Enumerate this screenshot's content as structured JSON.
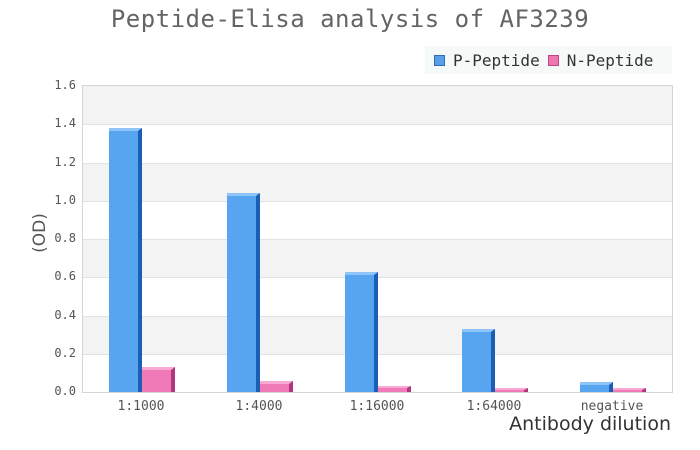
{
  "title": "Peptide-Elisa analysis of AF3239",
  "legend": {
    "items": [
      {
        "label": "P-Peptide",
        "swatch_color": "#57a0e8",
        "swatch_border": "#2f6db8"
      },
      {
        "label": "N-Peptide",
        "swatch_color": "#ee77ae",
        "swatch_border": "#c04488"
      }
    ]
  },
  "axes": {
    "y_title": "(OD)",
    "x_title": "Antibody dilution",
    "y_ticks": [
      "0.0",
      "0.2",
      "0.4",
      "0.6",
      "0.8",
      "1.0",
      "1.2",
      "1.4",
      "1.6"
    ]
  },
  "chart_data": {
    "type": "bar",
    "title": "Peptide-Elisa analysis of AF3239",
    "categories": [
      "1:1000",
      "1:4000",
      "1:16000",
      "1:64000",
      "negative"
    ],
    "series": [
      {
        "name": "P-Peptide",
        "values": [
          1.38,
          1.04,
          0.63,
          0.33,
          0.05
        ],
        "color": "#57a4f0",
        "color_dark": "#1a5fb4",
        "color_light": "#8ec4f8"
      },
      {
        "name": "N-Peptide",
        "values": [
          0.13,
          0.06,
          0.03,
          0.02,
          0.02
        ],
        "color": "#f07ab8",
        "color_dark": "#b23580",
        "color_light": "#f9a9d4"
      }
    ],
    "xlabel": "Antibody dilution",
    "ylabel": "(OD)",
    "ylim": [
      0,
      1.6
    ],
    "grid": true,
    "legend_position": "top-right",
    "band_colors": [
      "#ffffff",
      "#f3f3f3"
    ],
    "grid_color": "#e2e2e2"
  }
}
